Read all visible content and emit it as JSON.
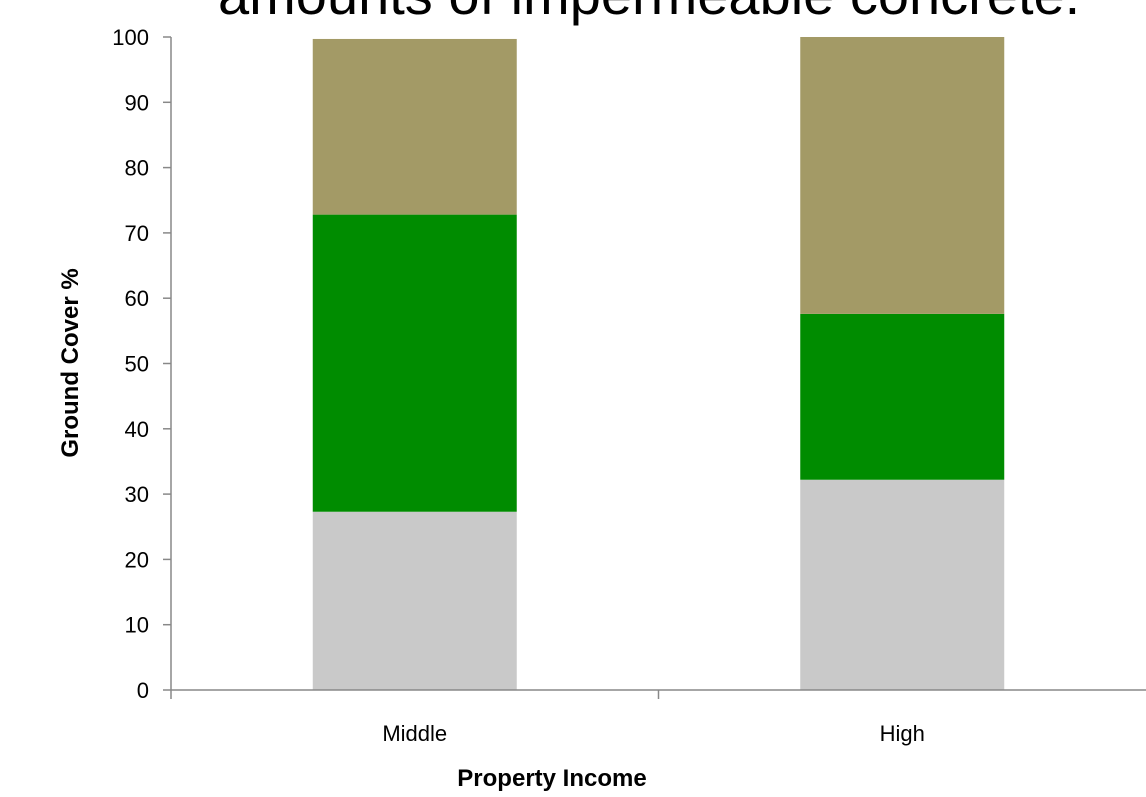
{
  "chart_data": {
    "type": "bar",
    "stacked": true,
    "title": "amounts of impermeable concrete.",
    "xlabel": "Property Income",
    "ylabel": "Ground Cover %",
    "categories": [
      "Middle",
      "High"
    ],
    "ylim": [
      0,
      100
    ],
    "yticks": [
      0,
      10,
      20,
      30,
      40,
      50,
      60,
      70,
      80,
      90,
      100
    ],
    "grid": false,
    "series": [
      {
        "values": [
          27.3,
          32.2
        ],
        "color": "#c9c9c9"
      },
      {
        "values": [
          45.5,
          25.4
        ],
        "color": "#008c00"
      },
      {
        "values": [
          26.9,
          42.4
        ],
        "color": "#a39a66"
      }
    ]
  }
}
